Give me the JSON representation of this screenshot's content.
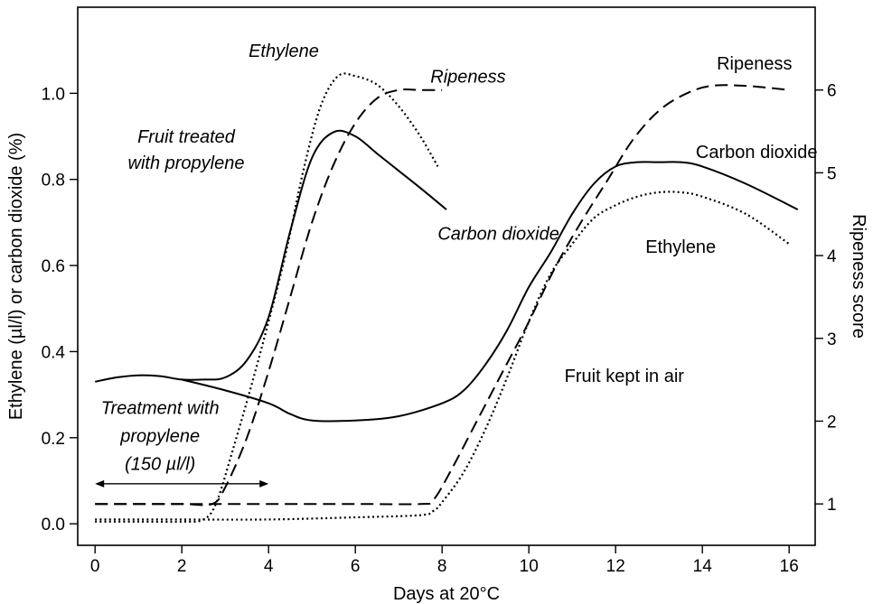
{
  "chart_data": {
    "type": "line",
    "xlabel": "Days at 20°C",
    "ylabel": "Ethylene (µl/l) or carbon dioxide (%)",
    "y2label": "Ripeness score",
    "xlim": [
      -0.4,
      16.6
    ],
    "ylim": [
      -0.05,
      1.2
    ],
    "y2lim": [
      0.5,
      7.0
    ],
    "xticks": [
      0,
      2,
      4,
      6,
      8,
      10,
      12,
      14,
      16
    ],
    "yticks": [
      0.0,
      0.2,
      0.4,
      0.6,
      0.8,
      1.0
    ],
    "y2ticks": [
      1,
      2,
      3,
      4,
      5,
      6
    ],
    "ytick_labels": [
      "0.0",
      "0.2",
      "0.4",
      "0.6",
      "0.8",
      "1.0"
    ],
    "grid": false,
    "legend": "none",
    "series": [
      {
        "name": "Carbon dioxide",
        "group": "Fruit treated with propylene",
        "axis": "left",
        "style": "solid",
        "x": [
          0,
          0.5,
          1,
          1.5,
          2,
          2.5,
          3,
          3.5,
          4,
          4.5,
          5,
          5.5,
          6,
          6.5,
          7,
          7.5,
          8.1
        ],
        "y": [
          0.33,
          0.34,
          0.345,
          0.343,
          0.335,
          0.335,
          0.34,
          0.38,
          0.48,
          0.68,
          0.85,
          0.91,
          0.9,
          0.86,
          0.82,
          0.78,
          0.73
        ]
      },
      {
        "name": "Ethylene",
        "group": "Fruit treated with propylene",
        "axis": "left",
        "style": "dotted",
        "x": [
          0,
          1,
          2,
          2.5,
          2.8,
          3.2,
          3.6,
          4,
          4.4,
          4.8,
          5.2,
          5.6,
          6,
          6.5,
          7,
          7.5,
          7.9
        ],
        "y": [
          0.005,
          0.005,
          0.005,
          0.01,
          0.05,
          0.18,
          0.32,
          0.47,
          0.63,
          0.82,
          0.97,
          1.04,
          1.04,
          1.02,
          0.97,
          0.9,
          0.83
        ]
      },
      {
        "name": "Ripeness",
        "group": "Fruit treated with propylene",
        "axis": "right",
        "style": "dashed",
        "x": [
          0,
          1,
          2,
          2.7,
          3,
          3.5,
          4,
          4.5,
          5,
          5.5,
          6,
          6.5,
          7,
          7.5,
          8
        ],
        "y": [
          1.0,
          1.0,
          1.0,
          1.0,
          1.2,
          1.8,
          2.6,
          3.5,
          4.4,
          5.1,
          5.6,
          5.9,
          6.0,
          6.0,
          6.0
        ]
      },
      {
        "name": "Carbon dioxide",
        "group": "Fruit kept in air",
        "axis": "left",
        "style": "solid",
        "x": [
          2,
          3,
          4,
          4.5,
          5,
          6,
          7,
          8,
          8.5,
          9,
          9.5,
          10,
          10.5,
          11,
          11.5,
          12,
          12.5,
          13,
          13.5,
          14,
          15,
          16.2
        ],
        "y": [
          0.335,
          0.31,
          0.28,
          0.255,
          0.24,
          0.24,
          0.25,
          0.28,
          0.31,
          0.37,
          0.45,
          0.55,
          0.63,
          0.72,
          0.79,
          0.83,
          0.84,
          0.84,
          0.84,
          0.83,
          0.79,
          0.73
        ]
      },
      {
        "name": "Ethylene",
        "group": "Fruit kept in air",
        "axis": "left",
        "style": "dotted",
        "x": [
          0,
          2,
          4,
          6,
          7.5,
          7.8,
          8,
          8.5,
          9,
          9.5,
          10,
          10.5,
          11,
          11.5,
          12,
          12.5,
          13,
          13.5,
          14,
          15,
          16
        ],
        "y": [
          0.01,
          0.01,
          0.01,
          0.015,
          0.02,
          0.03,
          0.05,
          0.12,
          0.22,
          0.34,
          0.47,
          0.58,
          0.65,
          0.71,
          0.74,
          0.76,
          0.77,
          0.77,
          0.76,
          0.72,
          0.65
        ]
      },
      {
        "name": "Ripeness",
        "group": "Fruit kept in air",
        "axis": "right",
        "style": "dashed",
        "x": [
          0,
          2,
          4,
          6,
          7.5,
          7.8,
          8.2,
          8.8,
          9.4,
          10,
          10.6,
          11.2,
          11.8,
          12.4,
          13,
          13.6,
          14.2,
          15,
          16
        ],
        "y": [
          1.0,
          1.0,
          1.0,
          1.0,
          1.0,
          1.05,
          1.4,
          2.0,
          2.6,
          3.2,
          3.85,
          4.4,
          4.9,
          5.4,
          5.75,
          5.95,
          6.05,
          6.05,
          6.0
        ]
      }
    ],
    "annotations": [
      {
        "text": "Ethylene",
        "italic": true,
        "x": 4.35,
        "y": 1.085
      },
      {
        "text": "Ripeness",
        "italic": true,
        "x": 8.6,
        "y": 1.025
      },
      {
        "text": "Fruit treated",
        "italic": true,
        "x": 2.1,
        "y": 0.885
      },
      {
        "text": "with propylene",
        "italic": true,
        "x": 2.1,
        "y": 0.825
      },
      {
        "text": "Carbon dioxide",
        "italic": true,
        "x": 9.3,
        "y": 0.66
      },
      {
        "text": "Treatment with",
        "italic": true,
        "x": 1.5,
        "y": 0.255
      },
      {
        "text": "propylene",
        "italic": true,
        "x": 1.5,
        "y": 0.19
      },
      {
        "text": "(150 µl/l)",
        "italic": true,
        "x": 1.5,
        "y": 0.125
      },
      {
        "text": "Ripeness",
        "italic": false,
        "x": 15.2,
        "y": 1.055
      },
      {
        "text": "Carbon dioxide",
        "italic": false,
        "x": 15.25,
        "y": 0.85
      },
      {
        "text": "Ethylene",
        "italic": false,
        "x": 13.5,
        "y": 0.63
      },
      {
        "text": "Fruit kept in air",
        "italic": false,
        "x": 12.2,
        "y": 0.33
      }
    ],
    "treatment_period": [
      0,
      4
    ]
  }
}
